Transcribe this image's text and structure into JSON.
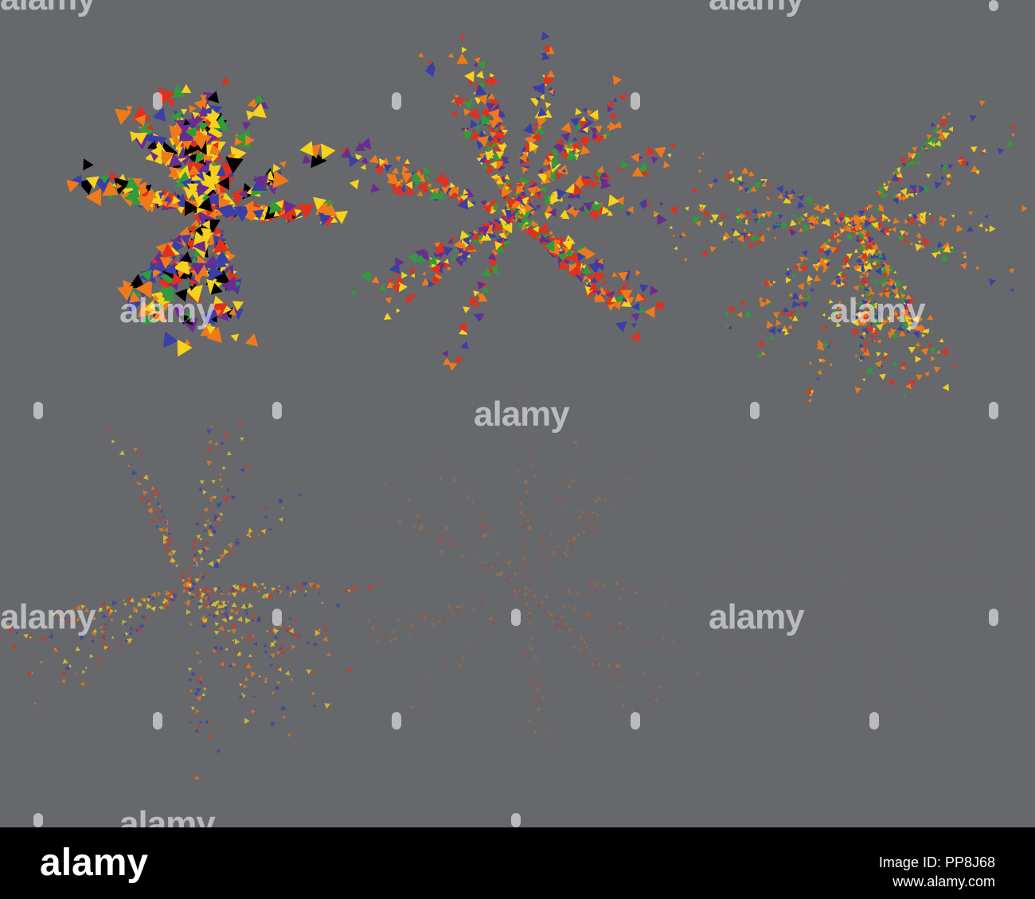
{
  "watermark": "alamy",
  "footer": {
    "logo": "alamy",
    "image_id": "Image ID: PP8J68",
    "url": "www.alamy.com"
  }
}
